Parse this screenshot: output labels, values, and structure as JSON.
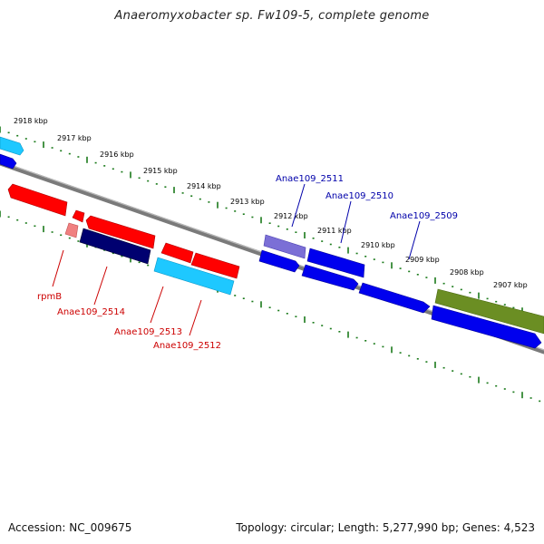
{
  "title": "Anaeromyxobacter sp. Fw109-5, complete genome",
  "footer": {
    "accession": "Accession: NC_009675",
    "summary": "Topology: circular; Length: 5,277,990 bp; Genes: 4,523"
  },
  "colors": {
    "backbone": "#7a7a7a",
    "ticks": "#1a7a1a",
    "red": "#ff0000",
    "blue": "#0000ee",
    "navy": "#000070",
    "cyan": "#1ec8ff",
    "olive": "#6b8e23",
    "lavender": "#7b6fd6",
    "pink": "#f08080",
    "label_blue": "#0000aa",
    "label_red": "#cc0000"
  },
  "scale": {
    "unit": "kbp",
    "ticks": [
      "2918 kbp",
      "2917 kbp",
      "2916 kbp",
      "2915 kbp",
      "2914 kbp",
      "2913 kbp",
      "2912 kbp",
      "2911 kbp",
      "2910 kbp",
      "2909 kbp",
      "2908 kbp",
      "2907 kbp"
    ]
  },
  "gene_labels": {
    "top": [
      "Anae109_2511",
      "Anae109_2510",
      "Anae109_2509"
    ],
    "bottom": [
      "rpmB",
      "Anae109_2514",
      "Anae109_2513",
      "Anae109_2512"
    ]
  }
}
